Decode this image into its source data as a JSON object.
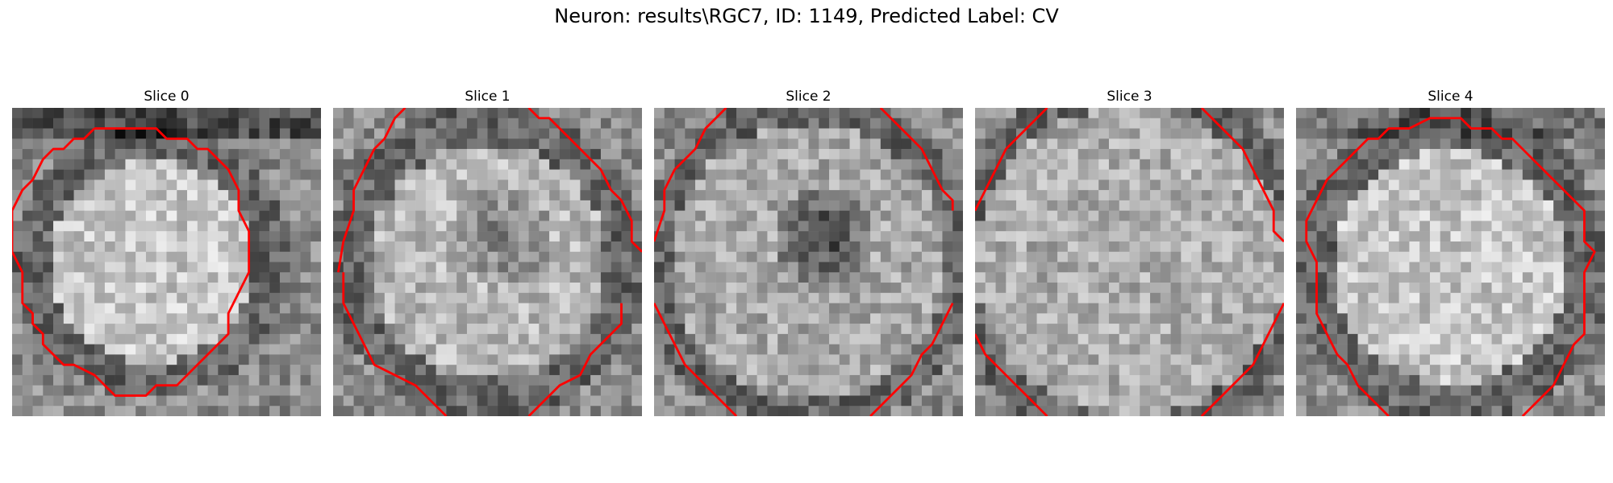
{
  "title": "Neuron: results\\RGC7, ID: 1149, Predicted Label: CV",
  "contour_color": "#ff0000",
  "panels": [
    {
      "label": "Slice 0",
      "contour": [
        [
          8,
          2
        ],
        [
          14,
          2
        ],
        [
          15,
          3
        ],
        [
          17,
          3
        ],
        [
          18,
          4
        ],
        [
          19,
          4
        ],
        [
          20,
          5
        ],
        [
          21,
          6
        ],
        [
          22,
          8
        ],
        [
          22,
          10
        ],
        [
          23,
          12
        ],
        [
          23,
          16
        ],
        [
          22,
          18
        ],
        [
          21,
          20
        ],
        [
          21,
          22
        ],
        [
          20,
          23
        ],
        [
          19,
          24
        ],
        [
          18,
          25
        ],
        [
          17,
          26
        ],
        [
          16,
          27
        ],
        [
          14,
          27
        ],
        [
          13,
          28
        ],
        [
          10,
          28
        ],
        [
          9,
          27
        ],
        [
          8,
          26
        ],
        [
          6,
          25
        ],
        [
          5,
          25
        ],
        [
          4,
          24
        ],
        [
          3,
          23
        ],
        [
          3,
          22
        ],
        [
          2,
          21
        ],
        [
          2,
          20
        ],
        [
          1,
          19
        ],
        [
          1,
          16
        ],
        [
          0,
          14
        ],
        [
          0,
          10
        ],
        [
          1,
          8
        ],
        [
          2,
          7
        ],
        [
          3,
          5
        ],
        [
          4,
          4
        ],
        [
          5,
          4
        ],
        [
          6,
          3
        ],
        [
          7,
          3
        ],
        [
          8,
          2
        ]
      ],
      "closed": true,
      "rows": [
        "mmmmmmmmmmmmmmmmmmmmmmmmmmmmm",
        "mmmmmmmmmmmmmmmmmmmmmmmmmmmmm"
      ]
    },
    {
      "label": "Slice 1",
      "contours": [
        [
          [
            0.5,
            16
          ],
          [
            1,
            13
          ],
          [
            2,
            10
          ],
          [
            2,
            8
          ],
          [
            3,
            6
          ],
          [
            4,
            4
          ],
          [
            5,
            3
          ],
          [
            6,
            1
          ],
          [
            7,
            0
          ]
        ],
        [
          [
            19,
            0
          ],
          [
            20,
            1
          ],
          [
            21,
            1
          ],
          [
            22,
            2
          ],
          [
            23,
            3
          ],
          [
            24,
            4
          ],
          [
            25,
            5
          ],
          [
            26,
            6
          ],
          [
            27,
            8
          ],
          [
            28,
            9
          ],
          [
            29,
            11
          ],
          [
            29,
            13
          ],
          [
            30,
            14
          ]
        ],
        [
          [
            1,
            16
          ],
          [
            1,
            19
          ],
          [
            2,
            21
          ],
          [
            3,
            23
          ],
          [
            4,
            25
          ],
          [
            6,
            26
          ],
          [
            8,
            27
          ],
          [
            9,
            28
          ],
          [
            10,
            29
          ],
          [
            11,
            30
          ]
        ],
        [
          [
            28,
            19
          ],
          [
            28,
            21
          ],
          [
            27,
            22
          ],
          [
            26,
            23
          ],
          [
            25,
            24
          ],
          [
            24,
            26
          ],
          [
            22,
            27
          ],
          [
            21,
            28
          ],
          [
            20,
            29
          ],
          [
            19,
            30
          ]
        ]
      ]
    },
    {
      "label": "Slice 2",
      "contours": [
        [
          [
            0,
            13
          ],
          [
            1,
            10
          ],
          [
            1,
            8
          ],
          [
            2,
            6
          ],
          [
            3,
            5
          ],
          [
            4,
            4
          ],
          [
            5,
            2
          ],
          [
            6,
            1
          ],
          [
            7,
            0
          ]
        ],
        [
          [
            22,
            0
          ],
          [
            23,
            1
          ],
          [
            24,
            2
          ],
          [
            25,
            3
          ],
          [
            26,
            4
          ],
          [
            27,
            6
          ],
          [
            28,
            8
          ],
          [
            29,
            9
          ],
          [
            29,
            10
          ]
        ],
        [
          [
            0,
            19
          ],
          [
            1,
            21
          ],
          [
            2,
            23
          ],
          [
            3,
            25
          ],
          [
            4,
            26
          ],
          [
            5,
            27
          ],
          [
            6,
            28
          ],
          [
            7,
            29
          ],
          [
            8,
            30
          ]
        ],
        [
          [
            29,
            19
          ],
          [
            28,
            21
          ],
          [
            27,
            23
          ],
          [
            26,
            24
          ],
          [
            25,
            26
          ],
          [
            24,
            27
          ],
          [
            23,
            28
          ],
          [
            22,
            29
          ],
          [
            21,
            30
          ]
        ]
      ]
    },
    {
      "label": "Slice 3",
      "contours": [
        [
          [
            0,
            10
          ],
          [
            1,
            8
          ],
          [
            2,
            6
          ],
          [
            3,
            4
          ],
          [
            4,
            3
          ],
          [
            5,
            2
          ],
          [
            6,
            1
          ],
          [
            7,
            0
          ]
        ],
        [
          [
            22,
            0
          ],
          [
            23,
            1
          ],
          [
            24,
            2
          ],
          [
            25,
            3
          ],
          [
            26,
            4
          ],
          [
            27,
            6
          ],
          [
            28,
            8
          ],
          [
            29,
            10
          ],
          [
            29,
            12
          ],
          [
            30,
            13
          ]
        ],
        [
          [
            0,
            22
          ],
          [
            1,
            24
          ],
          [
            2,
            25
          ],
          [
            3,
            26
          ],
          [
            4,
            27
          ],
          [
            5,
            28
          ],
          [
            6,
            29
          ],
          [
            7,
            30
          ]
        ],
        [
          [
            30,
            19
          ],
          [
            29,
            21
          ],
          [
            28,
            23
          ],
          [
            27,
            25
          ],
          [
            26,
            26
          ],
          [
            25,
            27
          ],
          [
            24,
            28
          ],
          [
            23,
            29
          ],
          [
            22,
            30
          ]
        ]
      ]
    },
    {
      "label": "Slice 4",
      "contours": [
        [
          [
            14,
            1
          ],
          [
            16,
            1
          ],
          [
            17,
            2
          ],
          [
            19,
            2
          ],
          [
            20,
            3
          ],
          [
            21,
            3
          ],
          [
            22,
            4
          ],
          [
            23,
            5
          ],
          [
            24,
            6
          ],
          [
            25,
            7
          ],
          [
            26,
            8
          ],
          [
            27,
            9
          ],
          [
            28,
            10
          ],
          [
            28,
            13
          ],
          [
            29,
            14
          ],
          [
            28,
            16
          ],
          [
            28,
            22
          ],
          [
            27,
            23
          ],
          [
            26,
            25
          ],
          [
            25,
            27
          ],
          [
            24,
            28
          ],
          [
            23,
            29
          ],
          [
            22,
            30
          ]
        ],
        [
          [
            14,
            1
          ],
          [
            13,
            1
          ],
          [
            11,
            2
          ],
          [
            9,
            2
          ],
          [
            8,
            3
          ],
          [
            7,
            3
          ],
          [
            5,
            5
          ],
          [
            4,
            6
          ],
          [
            3,
            7
          ],
          [
            2,
            9
          ],
          [
            1,
            11
          ],
          [
            1,
            13
          ],
          [
            2,
            15
          ],
          [
            2,
            20
          ],
          [
            3,
            22
          ],
          [
            4,
            24
          ],
          [
            5,
            25
          ],
          [
            6,
            27
          ],
          [
            7,
            28
          ],
          [
            8,
            29
          ],
          [
            9,
            30
          ]
        ]
      ]
    }
  ]
}
